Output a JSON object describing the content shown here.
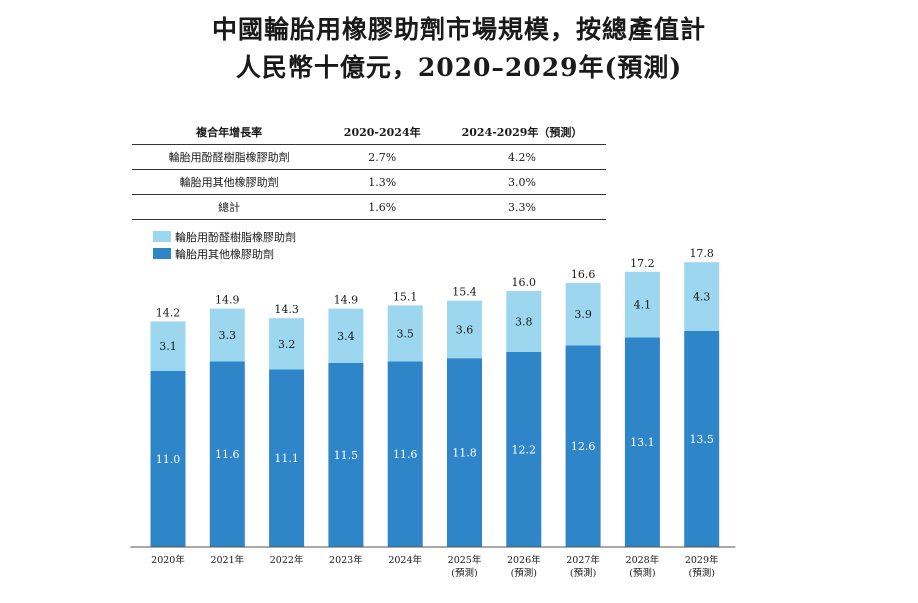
{
  "title_line1": "中國輪胎用橡膠助劑市場規模，按總產值計",
  "title_line2": "人民幣十億元，2020–2029年(預測)",
  "cagr_table": {
    "headers": [
      "複合年增長率",
      "2020-2024年",
      "2024-2029年（預測）"
    ],
    "rows": [
      [
        "輪胎用酚醛樹脂橡膠助劑",
        "2.7%",
        "4.2%"
      ],
      [
        "輪胎用其他橡膠助劑",
        "1.3%",
        "3.0%"
      ],
      [
        "總計",
        "1.6%",
        "3.3%"
      ]
    ]
  },
  "legend": {
    "phenolic": "輪胎用酚醛樹脂橡膠助劑",
    "other": "輪胎用其他橡膠助劑"
  },
  "colors": {
    "phenolic": "#9dd6ef",
    "other": "#2e86c8"
  },
  "chart_data": {
    "type": "bar",
    "stacked": true,
    "categories": [
      "2020年",
      "2021年",
      "2022年",
      "2023年",
      "2024年",
      "2025年\n(預測)",
      "2026年\n(預測)",
      "2027年\n(預測)",
      "2028年\n(預測)",
      "2029年\n(預測)"
    ],
    "series": [
      {
        "name": "輪胎用其他橡膠助劑",
        "values": [
          11.0,
          11.6,
          11.1,
          11.5,
          11.6,
          11.8,
          12.2,
          12.6,
          13.1,
          13.5
        ]
      },
      {
        "name": "輪胎用酚醛樹脂橡膠助劑",
        "values": [
          3.1,
          3.3,
          3.2,
          3.4,
          3.5,
          3.6,
          3.8,
          3.9,
          4.1,
          4.3
        ]
      }
    ],
    "totals": [
      "14.2",
      "14.9",
      "14.3",
      "14.9",
      "15.1",
      "15.4",
      "16.0",
      "16.6",
      "17.2",
      "17.8"
    ],
    "value_labels_other": [
      "11.0",
      "11.6",
      "11.1",
      "11.5",
      "11.6",
      "11.8",
      "12.2",
      "12.6",
      "13.1",
      "13.5"
    ],
    "value_labels_phenolic": [
      "3.1",
      "3.3",
      "3.2",
      "3.4",
      "3.5",
      "3.6",
      "3.8",
      "3.9",
      "4.1",
      "4.3"
    ],
    "title": "",
    "xlabel": "",
    "ylabel": "",
    "ylim": [
      0,
      17.8
    ],
    "grid": false,
    "legend_position": "top-left"
  }
}
